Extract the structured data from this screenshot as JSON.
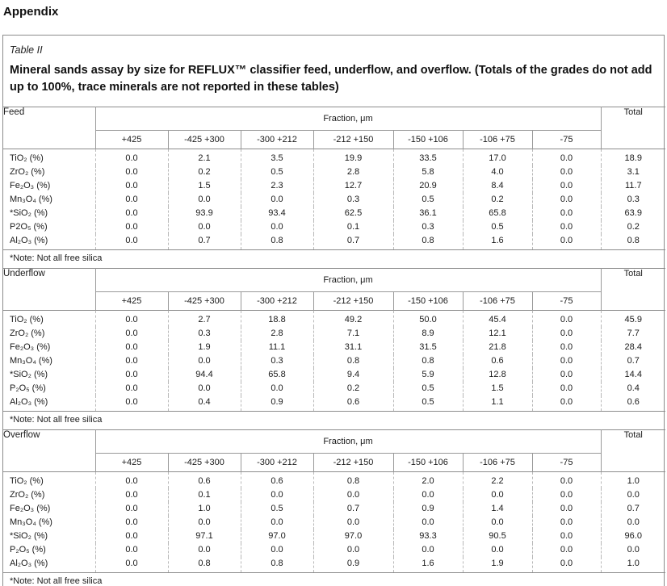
{
  "appendix_heading": "Appendix",
  "table_label": "Table II",
  "table_title": "Mineral sands assay by size for REFLUX™ classifier feed, underflow, and overflow. (Totals of the grades do not add up to 100%, trace minerals are not reported in these tables)",
  "fraction_header": "Fraction, μm",
  "total_header": "Total",
  "size_columns": [
    "+425",
    "-425 +300",
    "-300 +212",
    "-212 +150",
    "-150 +106",
    "-106 +75",
    "-75"
  ],
  "tables": [
    {
      "stream": "Feed",
      "note": "*Note: Not all free silica",
      "rows": [
        {
          "mineral": "TiO₂ (%)",
          "values": [
            "0.0",
            "2.1",
            "3.5",
            "19.9",
            "33.5",
            "17.0",
            "0.0"
          ],
          "total": "18.9"
        },
        {
          "mineral": "ZrO₂ (%)",
          "values": [
            "0.0",
            "0.2",
            "0.5",
            "2.8",
            "5.8",
            "4.0",
            "0.0"
          ],
          "total": "3.1"
        },
        {
          "mineral": "Fe₂O₃ (%)",
          "values": [
            "0.0",
            "1.5",
            "2.3",
            "12.7",
            "20.9",
            "8.4",
            "0.0"
          ],
          "total": "11.7"
        },
        {
          "mineral": "Mn₃O₄ (%)",
          "values": [
            "0.0",
            "0.0",
            "0.0",
            "0.3",
            "0.5",
            "0.2",
            "0.0"
          ],
          "total": "0.3"
        },
        {
          "mineral": "*SiO₂ (%)",
          "values": [
            "0.0",
            "93.9",
            "93.4",
            "62.5",
            "36.1",
            "65.8",
            "0.0"
          ],
          "total": "63.9"
        },
        {
          "mineral": "P2O₅ (%)",
          "values": [
            "0.0",
            "0.0",
            "0.0",
            "0.1",
            "0.3",
            "0.5",
            "0.0"
          ],
          "total": "0.2"
        },
        {
          "mineral": "Al₂O₃ (%)",
          "values": [
            "0.0",
            "0.7",
            "0.8",
            "0.7",
            "0.8",
            "1.6",
            "0.0"
          ],
          "total": "0.8"
        }
      ]
    },
    {
      "stream": "Underflow",
      "note": "*Note: Not all free silica",
      "rows": [
        {
          "mineral": "TiO₂ (%)",
          "values": [
            "0.0",
            "2.7",
            "18.8",
            "49.2",
            "50.0",
            "45.4",
            "0.0"
          ],
          "total": "45.9"
        },
        {
          "mineral": "ZrO₂ (%)",
          "values": [
            "0.0",
            "0.3",
            "2.8",
            "7.1",
            "8.9",
            "12.1",
            "0.0"
          ],
          "total": "7.7"
        },
        {
          "mineral": "Fe₂O₃ (%)",
          "values": [
            "0.0",
            "1.9",
            "11.1",
            "31.1",
            "31.5",
            "21.8",
            "0.0"
          ],
          "total": "28.4"
        },
        {
          "mineral": "Mn₃O₄ (%)",
          "values": [
            "0.0",
            "0.0",
            "0.3",
            "0.8",
            "0.8",
            "0.6",
            "0.0"
          ],
          "total": "0.7"
        },
        {
          "mineral": "*SiO₂ (%)",
          "values": [
            "0.0",
            "94.4",
            "65.8",
            "9.4",
            "5.9",
            "12.8",
            "0.0"
          ],
          "total": "14.4"
        },
        {
          "mineral": "P₂O₅ (%)",
          "values": [
            "0.0",
            "0.0",
            "0.0",
            "0.2",
            "0.5",
            "1.5",
            "0.0"
          ],
          "total": "0.4"
        },
        {
          "mineral": "Al₂O₃ (%)",
          "values": [
            "0.0",
            "0.4",
            "0.9",
            "0.6",
            "0.5",
            "1.1",
            "0.0"
          ],
          "total": "0.6"
        }
      ]
    },
    {
      "stream": "Overflow",
      "note": "*Note: Not all free silica",
      "rows": [
        {
          "mineral": "TiO₂ (%)",
          "values": [
            "0.0",
            "0.6",
            "0.6",
            "0.8",
            "2.0",
            "2.2",
            "0.0"
          ],
          "total": "1.0"
        },
        {
          "mineral": "ZrO₂ (%)",
          "values": [
            "0.0",
            "0.1",
            "0.0",
            "0.0",
            "0.0",
            "0.0",
            "0.0"
          ],
          "total": "0.0"
        },
        {
          "mineral": "Fe₂O₃ (%)",
          "values": [
            "0.0",
            "1.0",
            "0.5",
            "0.7",
            "0.9",
            "1.4",
            "0.0"
          ],
          "total": "0.7"
        },
        {
          "mineral": "Mn₃O₄ (%)",
          "values": [
            "0.0",
            "0.0",
            "0.0",
            "0.0",
            "0.0",
            "0.0",
            "0.0"
          ],
          "total": "0.0"
        },
        {
          "mineral": "*SiO₂ (%)",
          "values": [
            "0.0",
            "97.1",
            "97.0",
            "97.0",
            "93.3",
            "90.5",
            "0.0"
          ],
          "total": "96.0"
        },
        {
          "mineral": "P₂O₅ (%)",
          "values": [
            "0.0",
            "0.0",
            "0.0",
            "0.0",
            "0.0",
            "0.0",
            "0.0"
          ],
          "total": "0.0"
        },
        {
          "mineral": "Al₂O₃ (%)",
          "values": [
            "0.0",
            "0.8",
            "0.8",
            "0.9",
            "1.6",
            "1.9",
            "0.0"
          ],
          "total": "1.0"
        }
      ]
    }
  ]
}
